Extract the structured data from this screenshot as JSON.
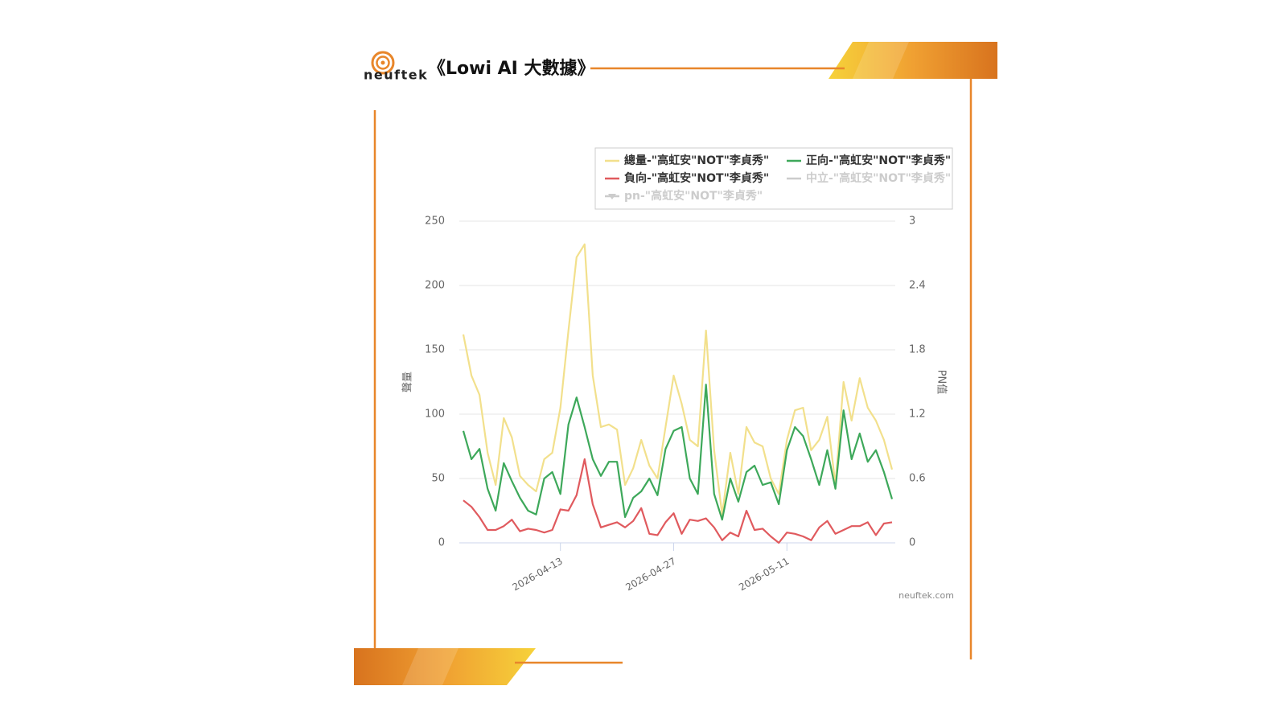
{
  "header": {
    "logo_text": "neuftek",
    "title": "《Lowi AI 大數據》"
  },
  "credit": "neuftek.com",
  "chart_data": {
    "type": "line",
    "ylabel": "聲量",
    "y2label": "PN值",
    "x": [
      "2026-04-01",
      "2026-04-02",
      "2026-04-03",
      "2026-04-04",
      "2026-04-05",
      "2026-04-06",
      "2026-04-07",
      "2026-04-08",
      "2026-04-09",
      "2026-04-10",
      "2026-04-11",
      "2026-04-12",
      "2026-04-13",
      "2026-04-14",
      "2026-04-15",
      "2026-04-16",
      "2026-04-17",
      "2026-04-18",
      "2026-04-19",
      "2026-04-20",
      "2026-04-21",
      "2026-04-22",
      "2026-04-23",
      "2026-04-24",
      "2026-04-25",
      "2026-04-26",
      "2026-04-27",
      "2026-04-28",
      "2026-04-29",
      "2026-04-30",
      "2026-05-01",
      "2026-05-02",
      "2026-05-03",
      "2026-05-04",
      "2026-05-05",
      "2026-05-06",
      "2026-05-07",
      "2026-05-08",
      "2026-05-09",
      "2026-05-10",
      "2026-05-11",
      "2026-05-12",
      "2026-05-13",
      "2026-05-14",
      "2026-05-15",
      "2026-05-16",
      "2026-05-17",
      "2026-05-18",
      "2026-05-19",
      "2026-05-20",
      "2026-05-21",
      "2026-05-22",
      "2026-05-23",
      "2026-05-24"
    ],
    "xlim": [
      "2026-04-01",
      "2026-05-24"
    ],
    "xticks": [
      "2026-04-13",
      "2026-04-27",
      "2026-05-11"
    ],
    "ylim": [
      0,
      250
    ],
    "yticks": [
      0,
      50,
      100,
      150,
      200,
      250
    ],
    "y2lim": [
      0,
      3
    ],
    "y2ticks": [
      0,
      0.6,
      1.2,
      1.8,
      2.4,
      3
    ],
    "grid": true,
    "legend": "top-right",
    "series": [
      {
        "name": "總量-\"高虹安\"NOT\"李貞秀\"",
        "color": "#f2e08c",
        "values": [
          162,
          130,
          115,
          70,
          45,
          97,
          82,
          52,
          45,
          40,
          65,
          70,
          105,
          165,
          222,
          232,
          130,
          90,
          92,
          88,
          45,
          58,
          80,
          60,
          50,
          90,
          130,
          108,
          80,
          75,
          165,
          72,
          22,
          70,
          38,
          90,
          78,
          75,
          50,
          38,
          80,
          103,
          105,
          72,
          80,
          98,
          45,
          125,
          95,
          128,
          105,
          95,
          80,
          57
        ]
      },
      {
        "name": "正向-\"高虹安\"NOT\"李貞秀\"",
        "color": "#3da85a",
        "values": [
          87,
          65,
          73,
          42,
          25,
          62,
          48,
          35,
          25,
          22,
          50,
          55,
          38,
          92,
          113,
          90,
          65,
          52,
          63,
          63,
          20,
          35,
          40,
          50,
          37,
          73,
          87,
          90,
          50,
          38,
          123,
          38,
          18,
          50,
          32,
          55,
          60,
          45,
          47,
          30,
          72,
          90,
          83,
          65,
          45,
          72,
          42,
          103,
          65,
          85,
          63,
          72,
          55,
          34
        ]
      },
      {
        "name": "負向-\"高虹安\"NOT\"李貞秀\"",
        "color": "#e05a5e",
        "values": [
          33,
          28,
          20,
          10,
          10,
          13,
          18,
          9,
          11,
          10,
          8,
          10,
          26,
          25,
          37,
          65,
          30,
          12,
          14,
          16,
          12,
          17,
          27,
          7,
          6,
          16,
          23,
          7,
          18,
          17,
          19,
          12,
          2,
          8,
          5,
          25,
          10,
          11,
          5,
          0,
          8,
          7,
          5,
          2,
          12,
          17,
          7,
          10,
          13,
          13,
          16,
          6,
          15,
          16
        ]
      },
      {
        "name": "中立-\"高虹安\"NOT\"李貞秀\"",
        "color": "#cccccc",
        "hidden": true
      },
      {
        "name": "pn-\"高虹安\"NOT\"李貞秀\"",
        "color": "#cccccc",
        "hidden": true,
        "axis": "y2"
      }
    ]
  }
}
